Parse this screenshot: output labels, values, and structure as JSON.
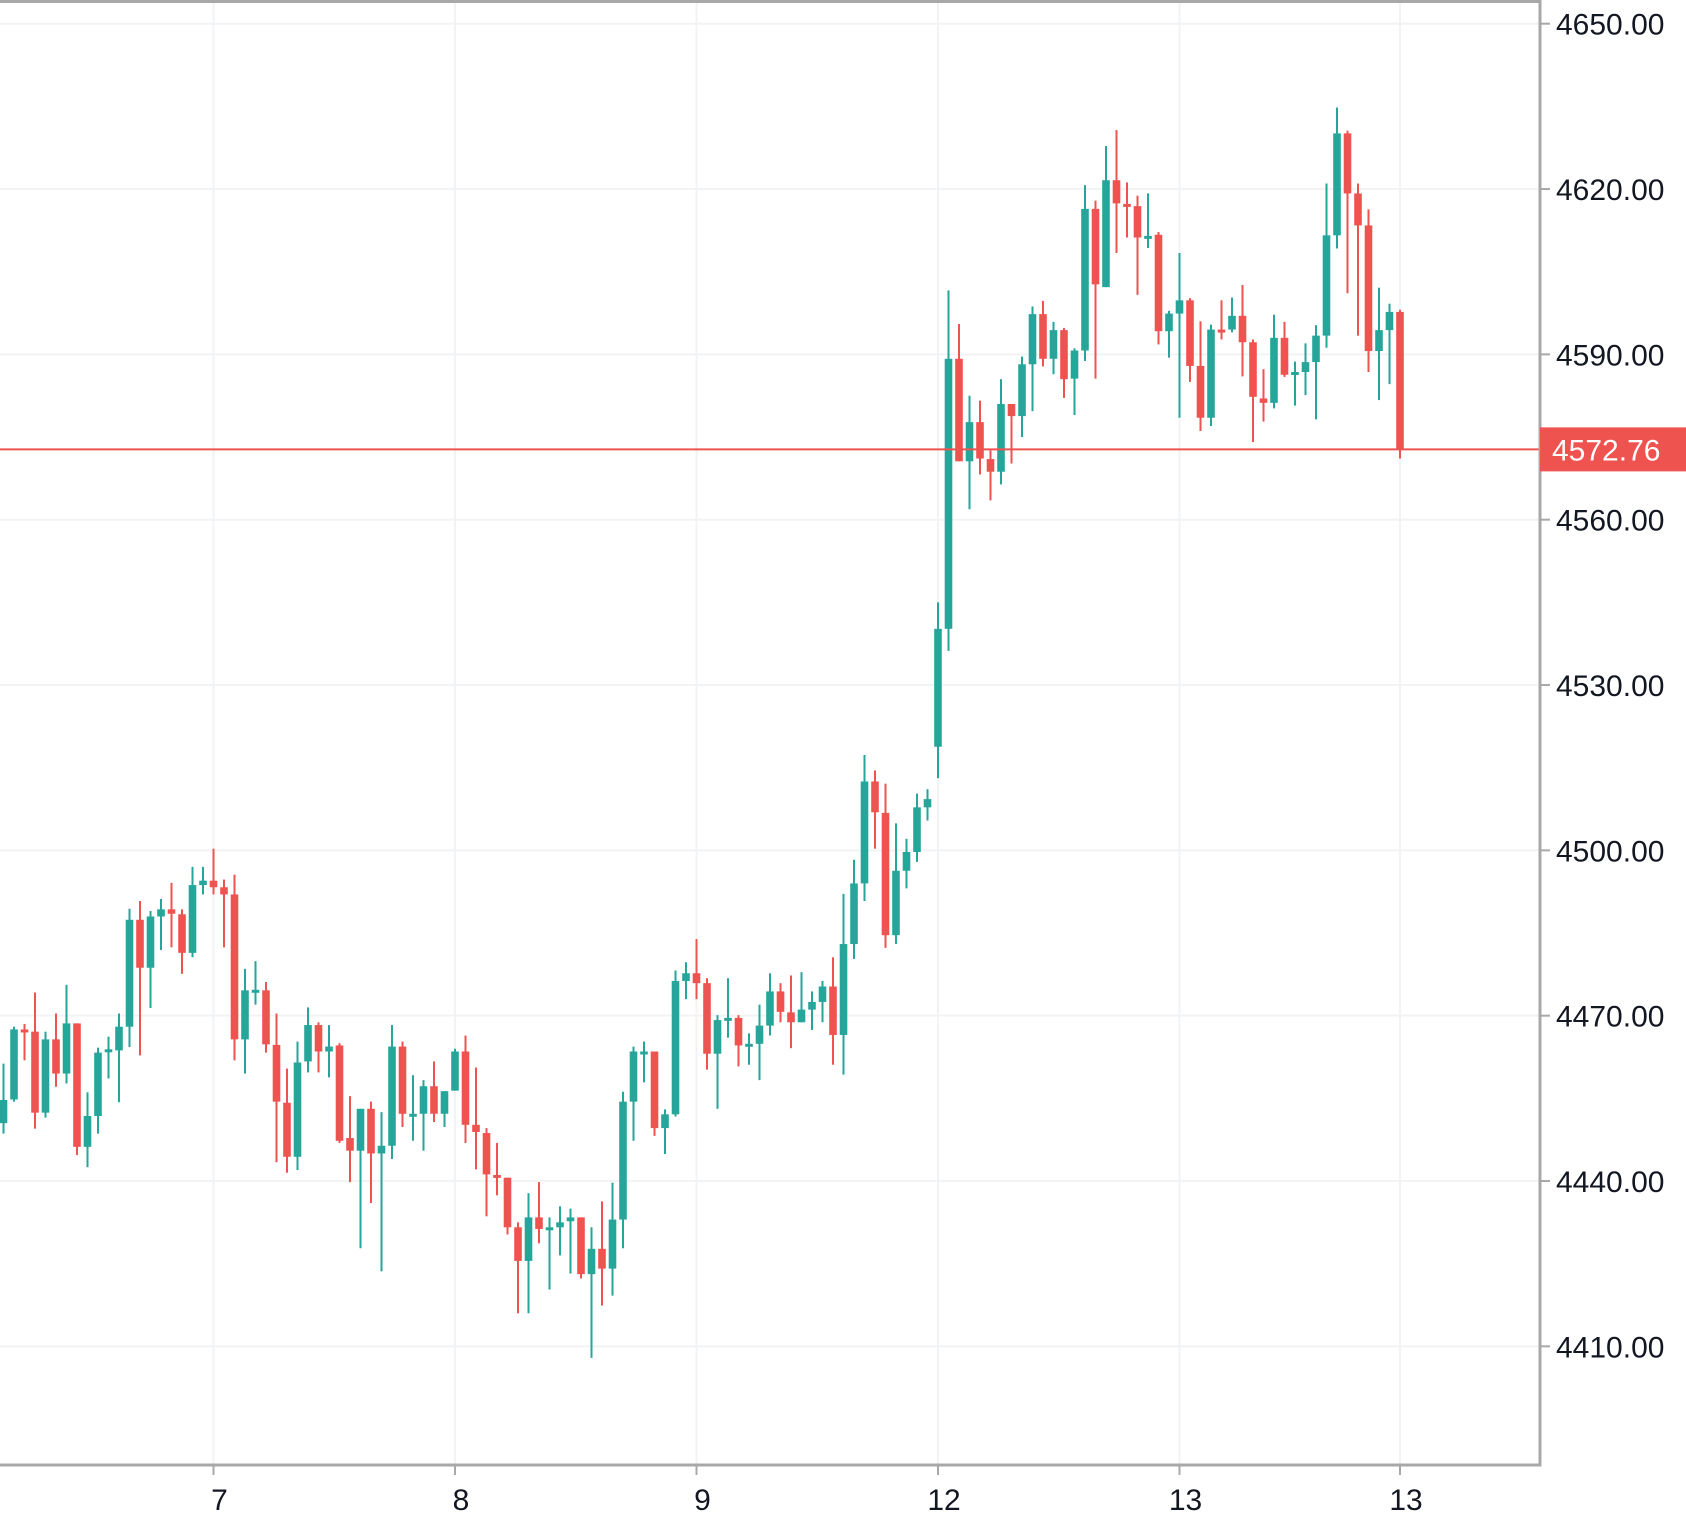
{
  "chart_data": {
    "type": "candlestick",
    "title": "",
    "xlabel": "",
    "ylabel": "",
    "ylim": [
      4392,
      4654
    ],
    "grid": true,
    "y_ticks": [
      "4650.00",
      "4620.00",
      "4590.00",
      "4560.00",
      "4530.00",
      "4500.00",
      "4470.00",
      "4440.00",
      "4410.00"
    ],
    "x_ticks": [
      {
        "label": "7",
        "candle_index": 20
      },
      {
        "label": "8",
        "candle_index": 43
      },
      {
        "label": "9",
        "candle_index": 66
      },
      {
        "label": "12",
        "candle_index": 89
      },
      {
        "label": "13",
        "candle_index": 112
      },
      {
        "label": "13",
        "candle_index": 133
      }
    ],
    "last_price": "4572.76",
    "colors": {
      "up": "#26a69a",
      "down": "#ef5350",
      "last_price_line": "#ef5350",
      "grid": "#f2f3f5",
      "axis": "#a8a8a8"
    },
    "ohlc_fields": [
      "open",
      "high",
      "low",
      "close"
    ],
    "candles": [
      [
        4450.5,
        4461.3,
        4448.6,
        4454.7
      ],
      [
        4454.8,
        4468,
        4454.4,
        4467.5
      ],
      [
        4467.5,
        4468.5,
        4461.9,
        4467.2
      ],
      [
        4467.1,
        4474.2,
        4449.5,
        4452.4
      ],
      [
        4452.4,
        4467.1,
        4451.5,
        4465.7
      ],
      [
        4465.7,
        4470.4,
        4457.1,
        4459.5
      ],
      [
        4459.5,
        4475.6,
        4457.7,
        4468.6
      ],
      [
        4468.6,
        4468.6,
        4444.7,
        4446.2
      ],
      [
        4446.2,
        4456.1,
        4442.5,
        4451.8
      ],
      [
        4451.8,
        4464.2,
        4448.6,
        4463.3
      ],
      [
        4463.6,
        4466.2,
        4458.6,
        4463.9
      ],
      [
        4463.7,
        4470.4,
        4454.3,
        4468
      ],
      [
        4468,
        4489.4,
        4464.3,
        4487.4
      ],
      [
        4487.4,
        4490.8,
        4462.8,
        4478.7
      ],
      [
        4478.7,
        4489,
        4471.4,
        4488
      ],
      [
        4488,
        4491.2,
        4481.9,
        4489.3
      ],
      [
        4489.3,
        4494.1,
        4482.4,
        4488.5
      ],
      [
        4488.4,
        4489.3,
        4477.6,
        4481.4
      ],
      [
        4481.4,
        4497,
        4480.6,
        4493.7
      ],
      [
        4493.7,
        4497,
        4492,
        4494.5
      ],
      [
        4494.5,
        4500.3,
        4492,
        4493.3
      ],
      [
        4493.3,
        4494.7,
        4482.4,
        4492
      ],
      [
        4492,
        4495.6,
        4461.9,
        4465.7
      ],
      [
        4465.7,
        4478.5,
        4459.5,
        4474.6
      ],
      [
        4474.5,
        4479.9,
        4472,
        4474.7
      ],
      [
        4474.6,
        4476.1,
        4463.3,
        4464.8
      ],
      [
        4464.7,
        4470.4,
        4443.4,
        4454.4
      ],
      [
        4454.2,
        4460.4,
        4441.5,
        4444.4
      ],
      [
        4444.4,
        4465.3,
        4442,
        4461.5
      ],
      [
        4461.7,
        4471.5,
        4459.7,
        4468.3
      ],
      [
        4468.3,
        4468.8,
        4459.7,
        4463.5
      ],
      [
        4463.5,
        4468.3,
        4458.8,
        4464.4
      ],
      [
        4464.6,
        4465,
        4446.9,
        4447.3
      ],
      [
        4447.8,
        4455.4,
        4439.8,
        4445.5
      ],
      [
        4445.5,
        4453.1,
        4427.8,
        4453.1
      ],
      [
        4453.1,
        4454.4,
        4436,
        4445
      ],
      [
        4445,
        4452.5,
        4423.6,
        4446.4
      ],
      [
        4446.4,
        4468.3,
        4444,
        4464.4
      ],
      [
        4464.4,
        4465.3,
        4449.8,
        4452.2
      ],
      [
        4451.8,
        4459.2,
        4447.3,
        4452.2
      ],
      [
        4452.2,
        4458.3,
        4445.5,
        4457.2
      ],
      [
        4457.2,
        4461.7,
        4450.7,
        4452.2
      ],
      [
        4452.2,
        4456.3,
        4449.8,
        4456.3
      ],
      [
        4456.4,
        4464,
        4456.4,
        4463.5
      ],
      [
        4463.5,
        4466.4,
        4446.9,
        4450.2
      ],
      [
        4450.2,
        4460.6,
        4442.1,
        4448.9
      ],
      [
        4448.7,
        4449.6,
        4433.6,
        4441.2
      ],
      [
        4441.1,
        4446.9,
        4437.4,
        4440.7
      ],
      [
        4440.6,
        4440.6,
        4430.3,
        4431.6
      ],
      [
        4431.6,
        4432.5,
        4416,
        4425.5
      ],
      [
        4425.5,
        4437.8,
        4416,
        4433.4
      ],
      [
        4433.4,
        4439.8,
        4428.7,
        4431.3
      ],
      [
        4431.4,
        4433.4,
        4420.3,
        4431.6
      ],
      [
        4431.6,
        4435.4,
        4426.5,
        4432.5
      ],
      [
        4432.7,
        4435,
        4423.2,
        4433.4
      ],
      [
        4433.4,
        4433.4,
        4422.3,
        4423.1
      ],
      [
        4423.1,
        4431.6,
        4407.9,
        4427.7
      ],
      [
        4427.7,
        4436.3,
        4417.4,
        4424.1
      ],
      [
        4424.1,
        4439.7,
        4419.2,
        4433
      ],
      [
        4433,
        4456.2,
        4427.8,
        4454.4
      ],
      [
        4454.4,
        4464.4,
        4447.3,
        4463.5
      ],
      [
        4463.1,
        4465.3,
        4457.9,
        4463.5
      ],
      [
        4463.5,
        4463.5,
        4448.2,
        4449.6
      ],
      [
        4449.6,
        4453,
        4444.9,
        4452.1
      ],
      [
        4452.1,
        4478.2,
        4451.7,
        4476.3
      ],
      [
        4476.3,
        4479.7,
        4473,
        4477.7
      ],
      [
        4477.7,
        4483.9,
        4473,
        4475.9
      ],
      [
        4475.9,
        4476.8,
        4460.2,
        4463.1
      ],
      [
        4463.1,
        4470.1,
        4453.1,
        4469.2
      ],
      [
        4469.4,
        4476.8,
        4466,
        4469.6
      ],
      [
        4469.6,
        4470.1,
        4460.8,
        4464.6
      ],
      [
        4464.6,
        4466.8,
        4461.1,
        4464.9
      ],
      [
        4464.9,
        4472,
        4458.3,
        4468.2
      ],
      [
        4468.2,
        4477.7,
        4466.4,
        4474.4
      ],
      [
        4474.4,
        4475.9,
        4468.8,
        4470.7
      ],
      [
        4470.6,
        4477.3,
        4464.1,
        4468.8
      ],
      [
        4468.8,
        4477.9,
        4468.8,
        4471.1
      ],
      [
        4471.1,
        4474.4,
        4467.4,
        4472.5
      ],
      [
        4472.5,
        4476.3,
        4468.8,
        4475.3
      ],
      [
        4475.3,
        4480.6,
        4461.1,
        4466.5
      ],
      [
        4466.5,
        4492.1,
        4459.3,
        4483
      ],
      [
        4483,
        4498.3,
        4480.3,
        4494
      ],
      [
        4494,
        4517.3,
        4490.8,
        4512.5
      ],
      [
        4512.5,
        4514.5,
        4500.3,
        4506.9
      ],
      [
        4506.8,
        4512.1,
        4482.3,
        4484.6
      ],
      [
        4484.6,
        4504.9,
        4483,
        4496.3
      ],
      [
        4496.3,
        4502.1,
        4493.1,
        4499.7
      ],
      [
        4499.7,
        4510.3,
        4497.9,
        4507.8
      ],
      [
        4507.8,
        4511.1,
        4505.4,
        4509.3
      ],
      [
        4518.8,
        4545,
        4513.1,
        4540.2
      ],
      [
        4540.2,
        4601.6,
        4536.2,
        4589.2
      ],
      [
        4589.2,
        4595.5,
        4570.6,
        4570.6
      ],
      [
        4570.6,
        4582.5,
        4561.9,
        4577.7
      ],
      [
        4577.7,
        4581.6,
        4568.2,
        4571.1
      ],
      [
        4571,
        4572.6,
        4563.5,
        4568.7
      ],
      [
        4568.7,
        4585.5,
        4566.4,
        4581
      ],
      [
        4581,
        4581,
        4570.2,
        4578.8
      ],
      [
        4578.8,
        4589.6,
        4575,
        4588.2
      ],
      [
        4588.2,
        4598.7,
        4579.7,
        4597.3
      ],
      [
        4597.3,
        4599.7,
        4587.8,
        4589.2
      ],
      [
        4589.2,
        4595.9,
        4586.4,
        4594.4
      ],
      [
        4594.4,
        4594.8,
        4582.1,
        4585.5
      ],
      [
        4585.6,
        4591.1,
        4579,
        4590.7
      ],
      [
        4590.7,
        4620.7,
        4588.8,
        4616.4
      ],
      [
        4616.4,
        4617.9,
        4585.6,
        4602.7
      ],
      [
        4602.2,
        4627.8,
        4602.2,
        4621.6
      ],
      [
        4621.6,
        4630.7,
        4608.4,
        4617.4
      ],
      [
        4617.3,
        4621.2,
        4611.2,
        4617
      ],
      [
        4616.9,
        4618.8,
        4600.8,
        4611.2
      ],
      [
        4611.3,
        4619.2,
        4609.3,
        4611.5
      ],
      [
        4611.7,
        4612.2,
        4591.8,
        4594.2
      ],
      [
        4594.2,
        4597.9,
        4589.4,
        4597.4
      ],
      [
        4597.4,
        4608.4,
        4578.5,
        4599.8
      ],
      [
        4599.8,
        4600.2,
        4585,
        4587.9
      ],
      [
        4587.9,
        4596,
        4576.1,
        4578.5
      ],
      [
        4578.5,
        4595.4,
        4577,
        4594.5
      ],
      [
        4594.5,
        4599.8,
        4592.7,
        4594.2
      ],
      [
        4594.5,
        4600.3,
        4594,
        4597
      ],
      [
        4597,
        4602.6,
        4586,
        4592.2
      ],
      [
        4592.2,
        4592.7,
        4574.1,
        4582.3
      ],
      [
        4582,
        4587.3,
        4577.8,
        4581.2
      ],
      [
        4581.2,
        4597.2,
        4580.2,
        4593
      ],
      [
        4593,
        4595.9,
        4585.9,
        4586.3
      ],
      [
        4586.6,
        4588.7,
        4580.7,
        4586.8
      ],
      [
        4586.8,
        4592,
        4582.6,
        4588.6
      ],
      [
        4588.6,
        4595.3,
        4578.2,
        4593.4
      ],
      [
        4593.4,
        4621,
        4591.2,
        4611.6
      ],
      [
        4611.6,
        4634.8,
        4609.2,
        4630.1
      ],
      [
        4630.1,
        4630.6,
        4601.1,
        4619.2
      ],
      [
        4619.2,
        4621,
        4593.4,
        4613.4
      ],
      [
        4613.4,
        4616.3,
        4586.8,
        4590.6
      ],
      [
        4590.6,
        4602.1,
        4581.7,
        4594.4
      ],
      [
        4594.4,
        4599.2,
        4584.6,
        4597.7
      ],
      [
        4597.7,
        4598.1,
        4571.1,
        4572.76
      ]
    ]
  }
}
